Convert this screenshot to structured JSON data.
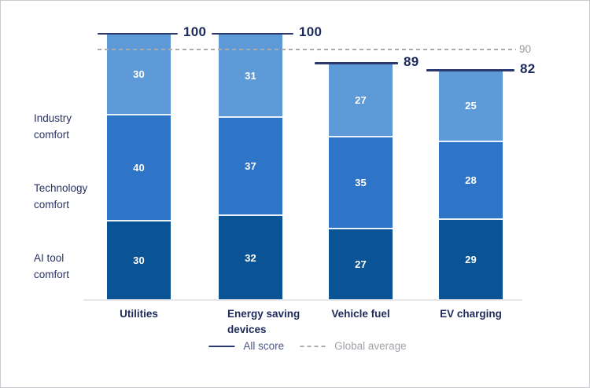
{
  "chart_data": {
    "type": "bar",
    "stacked": true,
    "title": "",
    "categories": [
      "Utilities",
      "Energy saving\ndevices",
      "Vehicle fuel",
      "EV charging"
    ],
    "series": [
      {
        "name": "AI tool comfort",
        "display": "AI tool\ncomfort",
        "color": "#0A5394",
        "values": [
          30,
          32,
          27,
          29
        ]
      },
      {
        "name": "Technology comfort",
        "display": "Technology\ncomfort",
        "color": "#2E74C7",
        "values": [
          40,
          37,
          35,
          28
        ]
      },
      {
        "name": "Industry comfort",
        "display": "Industry\ncomfort",
        "color": "#5F9AD8",
        "values": [
          30,
          31,
          27,
          25
        ]
      }
    ],
    "totals": [
      100,
      100,
      89,
      82
    ],
    "reference_line": {
      "label": "90",
      "value": 90
    },
    "legend": [
      {
        "label": "All score",
        "style": "solid",
        "color": "#2B3A6E"
      },
      {
        "label": "Global average",
        "style": "dashed",
        "color": "#ABABAB"
      }
    ],
    "ylim": [
      0,
      100
    ],
    "grid": false,
    "legend_position": "bottom-center"
  }
}
